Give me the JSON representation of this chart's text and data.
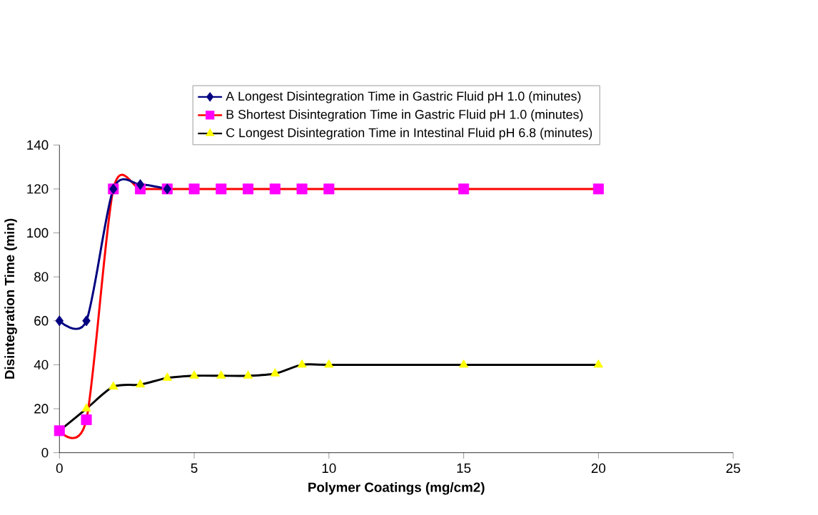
{
  "chart_data": {
    "type": "line",
    "xlabel": "Polymer Coatings (mg/cm2)",
    "ylabel": "Disintegration Time (min)",
    "xlim": [
      0,
      25
    ],
    "xticks": [
      0,
      5,
      10,
      15,
      20,
      25
    ],
    "ylim": [
      0,
      140
    ],
    "yticks": [
      0,
      20,
      40,
      60,
      80,
      100,
      120,
      140
    ],
    "grid": false,
    "legend": "top",
    "series": [
      {
        "name": "A Longest Disintegration Time in Gastric Fluid   pH 1.0 (minutes)",
        "color": "#000080",
        "marker": "diamond",
        "x": [
          0,
          1,
          2,
          3,
          4
        ],
        "values": [
          60,
          60,
          120,
          122,
          120
        ]
      },
      {
        "name": "B Shortest Disintegration Time in Gastric Fluid   pH 1.0 (minutes)",
        "color": "#ff0000",
        "marker": "square",
        "colors": [
          "#ff00ff",
          "#ff00ff",
          "#ff00ff",
          "#ff00ff",
          "#ff00ff",
          "#ff00ff",
          "#ff00ff",
          "#ff00ff",
          "#ff00ff",
          "#ff00ff",
          "#ff00ff",
          "#ff00ff",
          "#ff00ff"
        ],
        "x": [
          0,
          1,
          2,
          3,
          4,
          5,
          6,
          7,
          8,
          9,
          10,
          15,
          20
        ],
        "values": [
          10,
          15,
          120,
          120,
          120,
          120,
          120,
          120,
          120,
          120,
          120,
          120,
          120
        ]
      },
      {
        "name": "C Longest Disintegration Time in Intestinal Fluid pH 6.8 (minutes)",
        "color": "#000000",
        "marker": "triangle",
        "colors": [
          "#ffff00",
          "#ffff00",
          "#ffff00",
          "#ffff00",
          "#ffff00",
          "#ffff00",
          "#ffff00",
          "#ffff00",
          "#ffff00",
          "#ffff00",
          "#ffff00",
          "#ffff00",
          "#ffff00"
        ],
        "x": [
          0,
          1,
          2,
          3,
          4,
          5,
          6,
          7,
          8,
          9,
          10,
          15,
          20
        ],
        "values": [
          10,
          20,
          30,
          31,
          34,
          35,
          35,
          35,
          36,
          40,
          40,
          40,
          40
        ]
      }
    ]
  }
}
